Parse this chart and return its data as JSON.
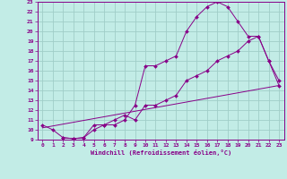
{
  "xlabel": "Windchill (Refroidissement éolien,°C)",
  "bg_color": "#c2ece6",
  "grid_color": "#a0cdc8",
  "line_color": "#880088",
  "xlim": [
    -0.5,
    23.5
  ],
  "ylim": [
    9,
    23
  ],
  "xticks": [
    0,
    1,
    2,
    3,
    4,
    5,
    6,
    7,
    8,
    9,
    10,
    11,
    12,
    13,
    14,
    15,
    16,
    17,
    18,
    19,
    20,
    21,
    22,
    23
  ],
  "yticks": [
    9,
    10,
    11,
    12,
    13,
    14,
    15,
    16,
    17,
    18,
    19,
    20,
    21,
    22,
    23
  ],
  "line1_x": [
    0,
    1,
    2,
    3,
    4,
    5,
    6,
    7,
    8,
    9,
    10,
    11,
    12,
    13,
    14,
    15,
    16,
    17,
    18,
    19,
    20,
    21,
    22,
    23
  ],
  "line1_y": [
    10.5,
    10.0,
    9.2,
    9.1,
    9.2,
    10.5,
    10.5,
    10.5,
    11.0,
    12.5,
    16.5,
    16.5,
    17.0,
    17.5,
    20.0,
    21.5,
    22.5,
    23.0,
    22.5,
    21.0,
    19.5,
    19.5,
    17.0,
    15.0
  ],
  "line2_x": [
    2,
    3,
    4,
    5,
    6,
    7,
    8,
    9,
    10,
    11,
    12,
    13,
    14,
    15,
    16,
    17,
    18,
    19,
    20,
    21,
    22,
    23
  ],
  "line2_y": [
    9.2,
    9.1,
    9.2,
    10.0,
    10.5,
    11.0,
    11.5,
    11.0,
    12.5,
    12.5,
    13.0,
    13.5,
    15.0,
    15.5,
    16.0,
    17.0,
    17.5,
    18.0,
    19.0,
    19.5,
    17.0,
    14.5
  ],
  "line3_x": [
    0,
    23
  ],
  "line3_y": [
    10.2,
    14.5
  ]
}
